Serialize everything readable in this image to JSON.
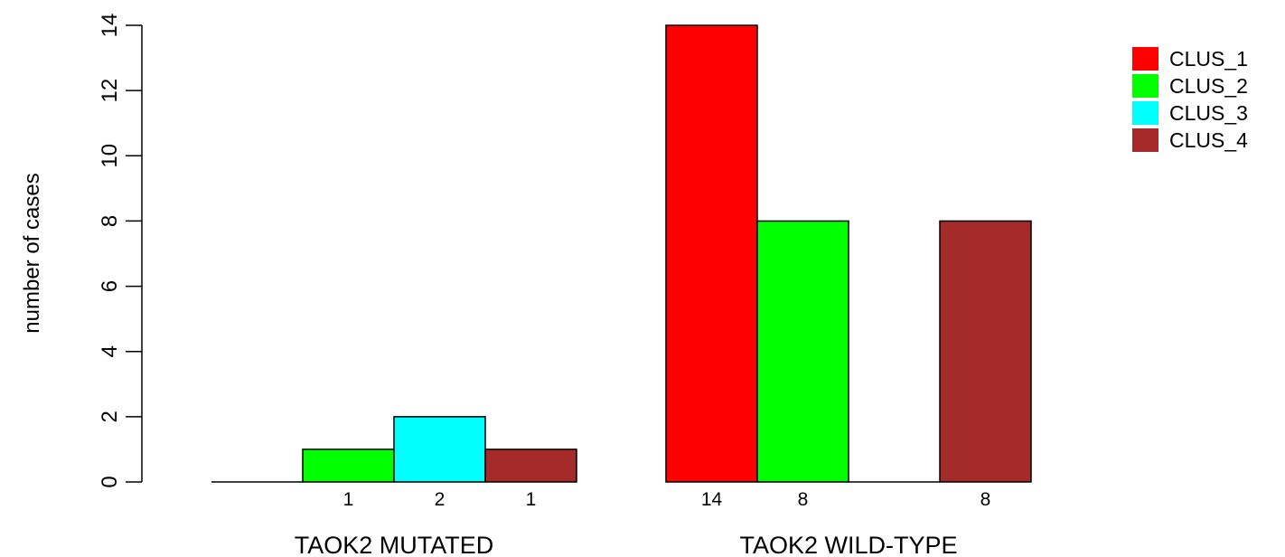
{
  "chart_data": {
    "type": "bar",
    "ylabel": "number of cases",
    "ylim": [
      0,
      14
    ],
    "yticks": [
      "0",
      "2",
      "4",
      "6",
      "8",
      "10",
      "12",
      "14"
    ],
    "groups": [
      "TAOK2 MUTATED",
      "TAOK2 WILD-TYPE"
    ],
    "series": [
      {
        "name": "CLUS_1",
        "color": "#ff0000",
        "values": [
          0,
          14
        ]
      },
      {
        "name": "CLUS_2",
        "color": "#00ff00",
        "values": [
          1,
          8
        ]
      },
      {
        "name": "CLUS_3",
        "color": "#00ffff",
        "values": [
          2,
          0
        ]
      },
      {
        "name": "CLUS_4",
        "color": "#a52a2a",
        "values": [
          1,
          8
        ]
      }
    ],
    "bar_labels": [
      [
        "",
        "1",
        "2",
        "1"
      ],
      [
        "14",
        "8",
        "",
        "8"
      ]
    ],
    "legend_position": "top-right",
    "grid": false
  }
}
